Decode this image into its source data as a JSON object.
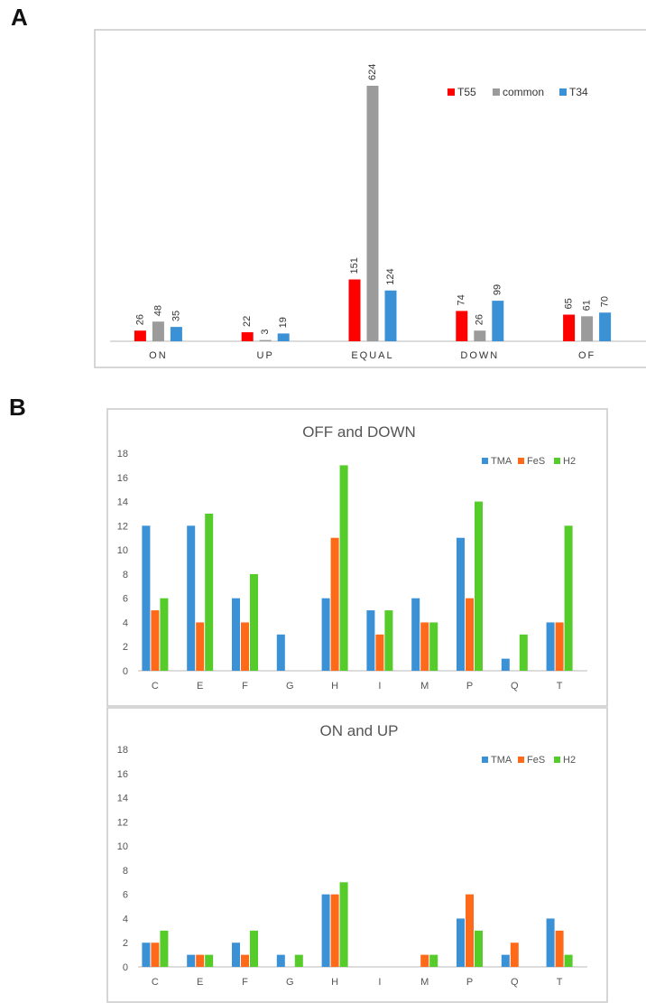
{
  "panel_labels": {
    "a": "A",
    "b": "B"
  },
  "chart_data": [
    {
      "type": "bar",
      "title": "",
      "xlabel": "",
      "ylabel": "",
      "ylim": [
        0,
        650
      ],
      "grid": false,
      "legend": "top-right",
      "value_labels": true,
      "categories": [
        "ON",
        "UP",
        "EQUAL",
        "DOWN",
        "OF"
      ],
      "series": [
        {
          "name": "T55",
          "color": "#ff0000",
          "values": [
            26,
            22,
            151,
            74,
            65
          ]
        },
        {
          "name": "common",
          "color": "#9b9b9b",
          "values": [
            48,
            3,
            624,
            26,
            61
          ]
        },
        {
          "name": "T34",
          "color": "#3a91d6",
          "values": [
            35,
            19,
            124,
            99,
            70
          ]
        }
      ]
    },
    {
      "type": "bar",
      "title": "OFF and DOWN",
      "xlabel": "",
      "ylabel": "",
      "ylim": [
        0,
        18
      ],
      "yticks": [
        "0",
        "2",
        "4",
        "6",
        "8",
        "10",
        "12",
        "14",
        "16",
        "18"
      ],
      "grid": false,
      "legend": "top-right",
      "categories": [
        "C",
        "E",
        "F",
        "G",
        "H",
        "I",
        "M",
        "P",
        "Q",
        "T"
      ],
      "series": [
        {
          "name": "TMA",
          "color": "#3a91d6",
          "values": [
            12,
            12,
            6,
            3,
            6,
            5,
            6,
            11,
            1,
            4
          ]
        },
        {
          "name": "FeS",
          "color": "#ff6a1a",
          "values": [
            5,
            4,
            4,
            0,
            11,
            3,
            4,
            6,
            0,
            4
          ]
        },
        {
          "name": "H2",
          "color": "#55cc2a",
          "values": [
            6,
            13,
            8,
            0,
            17,
            5,
            4,
            14,
            3,
            12
          ]
        }
      ]
    },
    {
      "type": "bar",
      "title": "ON and UP",
      "xlabel": "",
      "ylabel": "",
      "ylim": [
        0,
        18
      ],
      "yticks": [
        "0",
        "2",
        "4",
        "6",
        "8",
        "10",
        "12",
        "14",
        "16",
        "18"
      ],
      "grid": false,
      "legend": "top-right",
      "categories": [
        "C",
        "E",
        "F",
        "G",
        "H",
        "I",
        "M",
        "P",
        "Q",
        "T"
      ],
      "series": [
        {
          "name": "TMA",
          "color": "#3a91d6",
          "values": [
            2,
            1,
            2,
            1,
            6,
            0,
            0,
            4,
            1,
            4
          ]
        },
        {
          "name": "FeS",
          "color": "#ff6a1a",
          "values": [
            2,
            1,
            1,
            0,
            6,
            0,
            1,
            6,
            2,
            3
          ]
        },
        {
          "name": "H2",
          "color": "#55cc2a",
          "values": [
            3,
            1,
            3,
            1,
            7,
            0,
            1,
            3,
            0,
            1
          ]
        }
      ]
    }
  ]
}
